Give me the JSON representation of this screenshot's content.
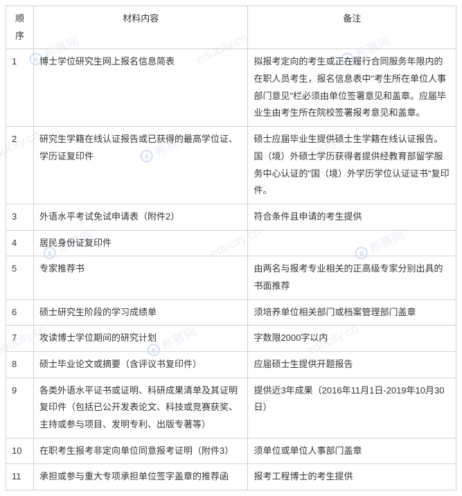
{
  "watermark": "希赛网",
  "watermark_url": "educity.cn",
  "headers": {
    "seq": "顺序",
    "content": "材料内容",
    "remark": "备注"
  },
  "rows": [
    {
      "seq": "1",
      "content": "博士学位研究生网上报名信息简表",
      "remark": "拟报考定向的考生或正在履行合同服务年限内的在职人员考生，报名信息表中\"考生所在单位人事部门意见\"栏必须由单位签署意见和盖章。应届毕业生由考生所在院校签署报考意见和盖章。"
    },
    {
      "seq": "2",
      "content": "研究生学籍在线认证报告或已获得的最高学位证、学历证复印件",
      "remark": "硕士应届毕业生提供硕士生学籍在线认证报告。\n国（境）外硕士学历获得者提供经教育部留学服务中心认证的\"国（境）外学历学位认证证书\"复印件。"
    },
    {
      "seq": "3",
      "content": "外语水平考试免试申请表（附件2）",
      "remark": "符合条件且申请的考生提供"
    },
    {
      "seq": "4",
      "content": "居民身份证复印件",
      "remark": ""
    },
    {
      "seq": "5",
      "content": "专家推荐书",
      "remark": "由两名与报考专业相关的正高级专家分别出具的书面推荐"
    },
    {
      "seq": "6",
      "content": "硕士研究生阶段的学习成绩单",
      "remark": "须培养单位相关部门或档案管理部门盖章"
    },
    {
      "seq": "7",
      "content": "攻读博士学位期间的研究计划",
      "remark": "字数限2000字以内"
    },
    {
      "seq": "8",
      "content": "硕士毕业论文或摘要（含评议书复印件）",
      "remark": "应届硕士生提供开题报告"
    },
    {
      "seq": "9",
      "content": "各类外语水平证书或证明、科研成果清单及其证明复印件（包括已公开发表论文、科技或竞赛获奖、主持或参与项目、发明专利、出版专著等）",
      "remark": "提供近3年成果（2016年11月1日-2019年10月30日）"
    },
    {
      "seq": "10",
      "content": "在职考生报考非定向单位同意报考证明（附件3）",
      "remark": "须单位或单位人事部门盖章"
    },
    {
      "seq": "11",
      "content": "承担或参与重大专项承担单位签字盖章的推荐函",
      "remark": "报考工程博士的考生提供"
    }
  ]
}
